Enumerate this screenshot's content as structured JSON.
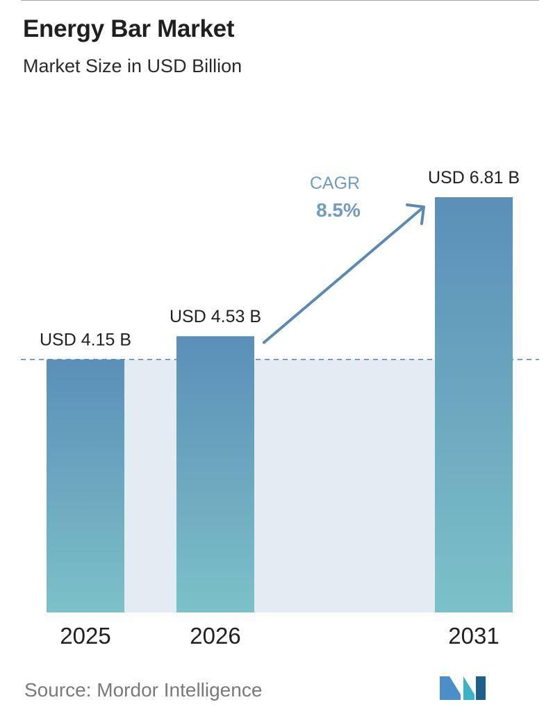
{
  "header": {
    "title": "Energy Bar Market",
    "subtitle": "Market Size in USD Billion"
  },
  "cagr": {
    "label": "CAGR",
    "value": "8.5%"
  },
  "footer": {
    "source": "Source:  Mordor Intelligence"
  },
  "colors": {
    "bar_top": "#5b8fb8",
    "bar_bottom": "#7cc1c8",
    "band": "#e3ebf3",
    "arrow": "#5b89b3",
    "cagr_text": "#6f9cbf"
  },
  "chart_data": {
    "type": "bar",
    "title": "Energy Bar Market",
    "subtitle": "Market Size in USD Billion",
    "categories": [
      "2025",
      "2026",
      "2031"
    ],
    "values": [
      4.15,
      4.53,
      6.81
    ],
    "value_labels": [
      "USD 4.15 B",
      "USD 4.53 B",
      "USD 6.81 B"
    ],
    "unit": "USD Billion",
    "reference_line": 4.15,
    "grid": false,
    "legend": "none"
  }
}
